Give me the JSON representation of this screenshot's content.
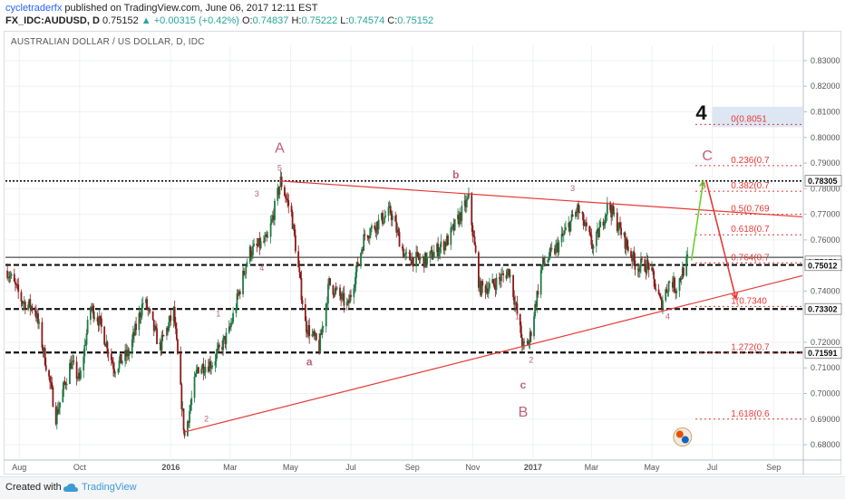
{
  "header": {
    "publisher": "cycletraderfx",
    "published_text": "published on TradingView.com, June 06, 2017 12:11 EST",
    "symbol": "FX_IDC:AUDUSD, D",
    "last": "0.75152",
    "change": "▲ +0.00315 (+0.42%)",
    "open_label": "O:",
    "open": "0.74837",
    "high_label": "H:",
    "high": "0.75222",
    "low_label": "L:",
    "low": "0.74574",
    "close_label": "C:",
    "close": "0.75152"
  },
  "chart_title": "AUSTRALIAN DOLLAR / US DOLLAR, D, IDC",
  "footer": {
    "created_with": "Created with",
    "brand": "TradingView"
  },
  "chart_data": {
    "type": "line",
    "subtype": "candlestick",
    "title": "AUSTRALIAN DOLLAR / US DOLLAR, D, IDC",
    "x_ticks": [
      "Aug",
      "Oct",
      "2016",
      "Mar",
      "May",
      "Jul",
      "Sep",
      "Nov",
      "2017",
      "Mar",
      "May",
      "Jul",
      "Sep"
    ],
    "y_ticks": [
      "0.83000",
      "0.82000",
      "0.81000",
      "0.80000",
      "0.79000",
      "0.78000",
      "0.77000",
      "0.76000",
      "0.74000",
      "0.72000",
      "0.71000",
      "0.70000",
      "0.69000",
      "0.68000"
    ],
    "ylim": [
      0.674,
      0.836
    ],
    "price_markers": [
      {
        "label": "0.78305",
        "value": 0.78305
      },
      {
        "label": "0.75152",
        "value": 0.75152
      },
      {
        "label": "0.75012",
        "value": 0.75012
      },
      {
        "label": "0.73302",
        "value": 0.73302
      },
      {
        "label": "0.71591",
        "value": 0.71591
      }
    ],
    "price_path": [
      {
        "x": "2015-07-20",
        "y": 0.748
      },
      {
        "x": "2015-08-04",
        "y": 0.736
      },
      {
        "x": "2015-08-17",
        "y": 0.733
      },
      {
        "x": "2015-09-03",
        "y": 0.7
      },
      {
        "x": "2015-09-07",
        "y": 0.691
      },
      {
        "x": "2015-09-22",
        "y": 0.712
      },
      {
        "x": "2015-10-01",
        "y": 0.705
      },
      {
        "x": "2015-10-12",
        "y": 0.734
      },
      {
        "x": "2015-10-20",
        "y": 0.729
      },
      {
        "x": "2015-11-05",
        "y": 0.71
      },
      {
        "x": "2015-11-20",
        "y": 0.716
      },
      {
        "x": "2015-12-05",
        "y": 0.737
      },
      {
        "x": "2015-12-21",
        "y": 0.718
      },
      {
        "x": "2016-01-04",
        "y": 0.732
      },
      {
        "x": "2016-01-15",
        "y": 0.683
      },
      {
        "x": "2016-01-28",
        "y": 0.71
      },
      {
        "x": "2016-02-12",
        "y": 0.712
      },
      {
        "x": "2016-02-29",
        "y": 0.724
      },
      {
        "x": "2016-03-20",
        "y": 0.755
      },
      {
        "x": "2016-04-08",
        "y": 0.76
      },
      {
        "x": "2016-04-21",
        "y": 0.783
      },
      {
        "x": "2016-05-02",
        "y": 0.77
      },
      {
        "x": "2016-05-16",
        "y": 0.727
      },
      {
        "x": "2016-05-30",
        "y": 0.718
      },
      {
        "x": "2016-06-09",
        "y": 0.743
      },
      {
        "x": "2016-06-28",
        "y": 0.734
      },
      {
        "x": "2016-07-15",
        "y": 0.762
      },
      {
        "x": "2016-08-10",
        "y": 0.771
      },
      {
        "x": "2016-08-25",
        "y": 0.753
      },
      {
        "x": "2016-09-15",
        "y": 0.752
      },
      {
        "x": "2016-10-07",
        "y": 0.76
      },
      {
        "x": "2016-10-28",
        "y": 0.776
      },
      {
        "x": "2016-11-08",
        "y": 0.741
      },
      {
        "x": "2016-11-20",
        "y": 0.742
      },
      {
        "x": "2016-12-08",
        "y": 0.748
      },
      {
        "x": "2016-12-22",
        "y": 0.718
      },
      {
        "x": "2016-12-28",
        "y": 0.72
      },
      {
        "x": "2017-01-10",
        "y": 0.75
      },
      {
        "x": "2017-01-25",
        "y": 0.757
      },
      {
        "x": "2017-02-15",
        "y": 0.772
      },
      {
        "x": "2017-03-03",
        "y": 0.757
      },
      {
        "x": "2017-03-18",
        "y": 0.774
      },
      {
        "x": "2017-04-01",
        "y": 0.762
      },
      {
        "x": "2017-04-15",
        "y": 0.75
      },
      {
        "x": "2017-04-28",
        "y": 0.75
      },
      {
        "x": "2017-05-10",
        "y": 0.735
      },
      {
        "x": "2017-05-20",
        "y": 0.745
      },
      {
        "x": "2017-05-25",
        "y": 0.741
      },
      {
        "x": "2017-06-06",
        "y": 0.752
      }
    ],
    "annotations": [
      {
        "text": "A",
        "x": "2016-04-20",
        "y": 0.794,
        "size": "big"
      },
      {
        "text": "5",
        "x": "2016-04-20",
        "y": 0.787
      },
      {
        "text": "3",
        "x": "2016-03-28",
        "y": 0.777
      },
      {
        "text": "4",
        "x": "2016-04-02",
        "y": 0.748
      },
      {
        "text": "1",
        "x": "2016-02-18",
        "y": 0.73
      },
      {
        "text": "2",
        "x": "2016-02-06",
        "y": 0.689
      },
      {
        "text": "a",
        "x": "2016-05-20",
        "y": 0.711,
        "size": "mid"
      },
      {
        "text": "b",
        "x": "2016-10-15",
        "y": 0.784,
        "size": "mid"
      },
      {
        "text": "3",
        "x": "2017-02-10",
        "y": 0.779
      },
      {
        "text": "1",
        "x": "2016-12-16",
        "y": 0.729
      },
      {
        "text": "2",
        "x": "2016-12-30",
        "y": 0.712
      },
      {
        "text": "c",
        "x": "2016-12-22",
        "y": 0.702,
        "size": "mid"
      },
      {
        "text": "B",
        "x": "2016-12-22",
        "y": 0.691,
        "size": "big"
      },
      {
        "text": "4",
        "x": "2017-05-17",
        "y": 0.729
      },
      {
        "text": "C",
        "x": "2017-06-26",
        "y": 0.791,
        "size": "big"
      },
      {
        "text": "5",
        "x": "2017-06-22",
        "y": 0.78
      },
      {
        "text": "4",
        "x": "2017-06-20",
        "y": 0.807,
        "size": "huge"
      }
    ],
    "fib_levels": [
      {
        "label": "0(0.8051",
        "value": 0.8051
      },
      {
        "label": "0.236(0.7",
        "value": 0.789
      },
      {
        "label": "0.382(0.7",
        "value": 0.779
      },
      {
        "label": "0.5(0.769",
        "value": 0.77
      },
      {
        "label": "0.618(0.7",
        "value": 0.762
      },
      {
        "label": "0.764(0.7",
        "value": 0.751
      },
      {
        "label": "1(0.7340",
        "value": 0.734
      },
      {
        "label": "1.272(0.7",
        "value": 0.716
      },
      {
        "label": "1.618(0.6",
        "value": 0.69
      }
    ],
    "horizontal_lines": [
      {
        "value": 0.783,
        "style": "dotted-heavy"
      },
      {
        "value": 0.7532,
        "style": "solid-thin"
      },
      {
        "value": 0.7502,
        "style": "dashed-heavy"
      },
      {
        "value": 0.733,
        "style": "dashed-heavy"
      },
      {
        "value": 0.716,
        "style": "dashed-heavy"
      }
    ],
    "trendlines": [
      {
        "from": {
          "x": "2016-04-21",
          "y": 0.783
        },
        "to": {
          "x": "2017-09-30",
          "y": 0.769
        },
        "color": "#e53935"
      },
      {
        "from": {
          "x": "2016-01-15",
          "y": 0.685
        },
        "to": {
          "x": "2017-09-30",
          "y": 0.746
        },
        "color": "#e53935"
      }
    ],
    "arrows": [
      {
        "from": {
          "x": "2017-06-10",
          "y": 0.752
        },
        "to": {
          "x": "2017-06-22",
          "y": 0.783
        },
        "color": "#6ad12a"
      },
      {
        "from": {
          "x": "2017-06-25",
          "y": 0.783
        },
        "to": {
          "x": "2017-07-25",
          "y": 0.737
        },
        "color": "#e53935"
      }
    ],
    "highlight_box": {
      "from_x": "2017-07-01",
      "to_x": "2017-09-30",
      "y_low": 0.804,
      "y_high": 0.812,
      "color": "#dde7f3"
    },
    "grid": true,
    "colors": {
      "up": "#1f7a45",
      "down": "#8b1a1a",
      "annotation": "#c0607a",
      "fib": "#e53935",
      "text": "#444444"
    }
  }
}
